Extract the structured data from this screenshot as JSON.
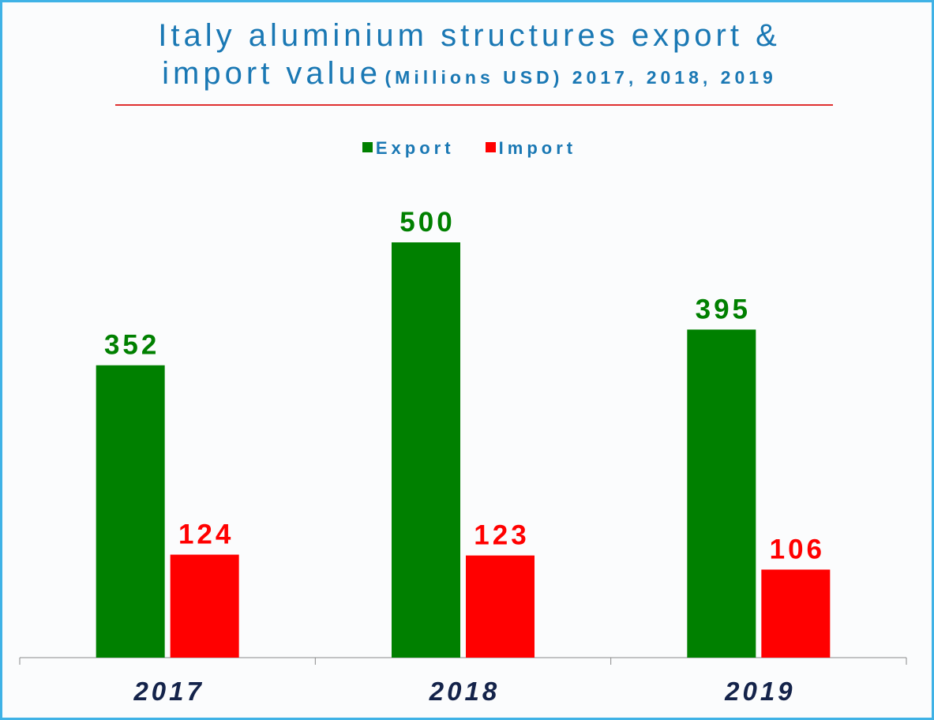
{
  "title": {
    "line1": "Italy aluminium structures export &",
    "line2_main": "import value",
    "line2_sub": "(Millions USD) 2017, 2018, 2019"
  },
  "colors": {
    "title": "#1a78b4",
    "rule": "#e03030",
    "export": "#008000",
    "import": "#ff0000",
    "axis": "#8a8a8a",
    "category": "#14234a",
    "border": "#3fb2e6"
  },
  "chart_data": {
    "type": "bar",
    "categories": [
      "2017",
      "2018",
      "2019"
    ],
    "series": [
      {
        "name": "Export",
        "color": "#008000",
        "values": [
          352,
          500,
          395
        ]
      },
      {
        "name": "Import",
        "color": "#ff0000",
        "values": [
          124,
          123,
          106
        ]
      }
    ],
    "ylim": [
      0,
      500
    ],
    "grid": false,
    "legend_position": "top-center",
    "data_labels": true
  }
}
